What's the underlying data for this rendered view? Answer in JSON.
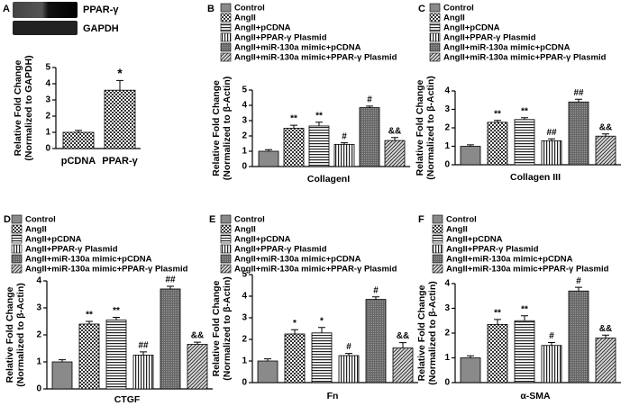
{
  "chart_data": [
    {
      "type": "bar",
      "panel_label": "A",
      "blot_labels": [
        "PPAR-γ",
        "GAPDH"
      ],
      "legend": false,
      "categories": [
        "pCDNA",
        "PPAR-γ"
      ],
      "patterns": [
        "checker",
        "checker"
      ],
      "values": [
        1.0,
        3.6
      ],
      "errors": [
        0.12,
        0.6
      ],
      "annotations": [
        null,
        "*"
      ],
      "ylabel": [
        "Relative Fold Change",
        "(Normalized to GAPDH)"
      ],
      "ylim": [
        0,
        5
      ],
      "yticks": [
        0,
        1,
        2,
        3,
        4,
        5
      ]
    },
    {
      "type": "bar",
      "panel_label": "B",
      "legend": true,
      "categories": [
        "Control",
        "AngII",
        "AngII+pCDNA",
        "AngII+PPAR-γ Plasmid",
        "AngII+miR-130a mimic+pCDNA",
        "AngII+miR-130a mimic+PPAR-γ Plasmid"
      ],
      "patterns": [
        "solid",
        "checker",
        "horizontal",
        "vertical",
        "dense",
        "diagonal"
      ],
      "values": [
        1.0,
        2.5,
        2.65,
        1.45,
        3.85,
        1.7
      ],
      "errors": [
        0.1,
        0.2,
        0.25,
        0.1,
        0.1,
        0.2
      ],
      "annotations": [
        null,
        "**",
        "**",
        "#",
        "#",
        "&&"
      ],
      "xlabel": "CollagenI",
      "ylabel": [
        "Relative Fold Change",
        "(Normalized to β-Actin)"
      ],
      "ylim": [
        0,
        5
      ],
      "yticks": [
        0,
        1,
        2,
        3,
        4,
        5
      ]
    },
    {
      "type": "bar",
      "panel_label": "C",
      "legend": true,
      "categories": [
        "Control",
        "AngII",
        "AngII+pCDNA",
        "AngII+PPAR-γ Plasmid",
        "AngII+miR-130a mimic+pCDNA",
        "AngII+miR-130a mimic+PPAR-γ Plasmid"
      ],
      "patterns": [
        "solid",
        "checker",
        "horizontal",
        "vertical",
        "dense",
        "diagonal"
      ],
      "values": [
        1.0,
        2.3,
        2.45,
        1.3,
        3.4,
        1.55
      ],
      "errors": [
        0.08,
        0.1,
        0.1,
        0.1,
        0.15,
        0.12
      ],
      "annotations": [
        null,
        "**",
        "**",
        "##",
        "##",
        "&&"
      ],
      "xlabel": "Collagen III",
      "ylabel": [
        "Relative Fold Change",
        "(Normalized to β-Actin)"
      ],
      "ylim": [
        0,
        4
      ],
      "yticks": [
        0,
        1,
        2,
        3,
        4
      ]
    },
    {
      "type": "bar",
      "panel_label": "D",
      "legend": true,
      "categories": [
        "Control",
        "AngII",
        "AngII+pCDNA",
        "AngII+PPAR-γ Plasmid",
        "AngII+miR-130a mimic+pCDNA",
        "AngII+miR-130a mimic+PPAR-γ Plasmid"
      ],
      "patterns": [
        "solid",
        "checker",
        "horizontal",
        "vertical",
        "dense",
        "diagonal"
      ],
      "values": [
        1.0,
        2.4,
        2.55,
        1.25,
        3.7,
        1.65
      ],
      "errors": [
        0.08,
        0.1,
        0.1,
        0.12,
        0.1,
        0.08
      ],
      "annotations": [
        null,
        "**",
        "**",
        "##",
        "##",
        "&&"
      ],
      "xlabel": "CTGF",
      "ylabel": [
        "Relative Fold Change",
        "(Normalized to β-Actin)"
      ],
      "ylim": [
        0,
        4
      ],
      "yticks": [
        0,
        1,
        2,
        3,
        4
      ]
    },
    {
      "type": "bar",
      "panel_label": "E",
      "legend": true,
      "categories": [
        "Control",
        "AngII",
        "AngII+pCDNA",
        "AngII+PPAR-γ Plasmid",
        "AngII+miR-130a mimic+pCDNA",
        "AngII+miR-130a mimic+PPAR-γ Plasmid"
      ],
      "patterns": [
        "solid",
        "checker",
        "horizontal",
        "vertical",
        "dense",
        "diagonal"
      ],
      "values": [
        1.0,
        2.25,
        2.3,
        1.25,
        3.85,
        1.6
      ],
      "errors": [
        0.1,
        0.2,
        0.25,
        0.1,
        0.12,
        0.25
      ],
      "annotations": [
        null,
        "*",
        "*",
        "#",
        "#",
        "&&"
      ],
      "xlabel": "Fn",
      "ylabel": [
        "Relative Fold Change",
        "(Normalized to β-Actin)"
      ],
      "ylim": [
        0,
        5
      ],
      "yticks": [
        0,
        1,
        2,
        3,
        4,
        5
      ]
    },
    {
      "type": "bar",
      "panel_label": "F",
      "legend": true,
      "categories": [
        "Control",
        "AngII",
        "AngII+pCDNA",
        "AngII+PPAR-γ Plasmid",
        "AngII+miR-130a mimic+pCDNA",
        "AngII+miR-130a mimic+PPAR-γ Plasmid"
      ],
      "patterns": [
        "solid",
        "checker",
        "horizontal",
        "vertical",
        "dense",
        "diagonal"
      ],
      "values": [
        1.0,
        2.35,
        2.5,
        1.5,
        3.7,
        1.8
      ],
      "errors": [
        0.08,
        0.2,
        0.2,
        0.12,
        0.15,
        0.12
      ],
      "annotations": [
        null,
        "**",
        "**",
        "#",
        "#",
        "&&"
      ],
      "xlabel": "α-SMA",
      "ylabel": [
        "Relative Fold Change",
        "(Normalized to β-Actin)"
      ],
      "ylim": [
        0,
        4
      ],
      "yticks": [
        0,
        1,
        2,
        3,
        4
      ]
    }
  ]
}
